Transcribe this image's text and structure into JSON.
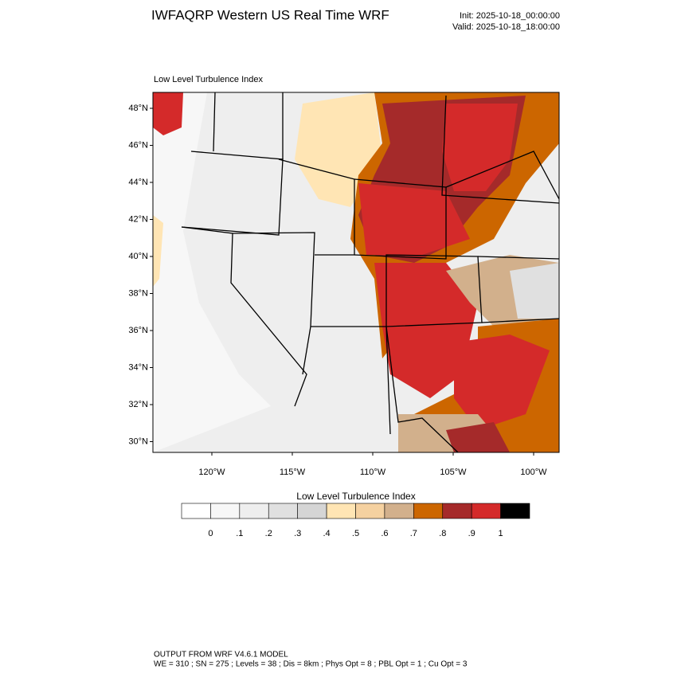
{
  "header": {
    "title": "IWFAQRP Western US Real Time WRF",
    "init": "Init: 2025-10-18_00:00:00",
    "valid": "Valid: 2025-10-18_18:00:00"
  },
  "map": {
    "subtitle": "Low Level Turbulence Index",
    "lat_labels": [
      "48°N",
      "46°N",
      "44°N",
      "42°N",
      "40°N",
      "38°N",
      "36°N",
      "34°N",
      "32°N",
      "30°N"
    ],
    "lon_labels": [
      "120°W",
      "115°W",
      "110°W",
      "105°W",
      "100°W"
    ]
  },
  "colorbar": {
    "title": "Low Level Turbulence Index",
    "colors": [
      "#ffffff",
      "#f7f7f7",
      "#eeeeee",
      "#e0e0e0",
      "#d5d5d5",
      "#ffe5b4",
      "#f5d1a0",
      "#d2b08c",
      "#cc6600",
      "#a52a2a",
      "#d42a2a",
      "#000000"
    ],
    "labels": [
      "0",
      ".1",
      ".2",
      ".3",
      ".4",
      ".5",
      ".6",
      ".7",
      ".8",
      ".9",
      "1"
    ]
  },
  "footer": {
    "line1": "OUTPUT FROM WRF V4.6.1 MODEL",
    "line2": "WE = 310 ; SN = 275 ; Levels = 38 ; Dis = 8km ; Phys Opt = 8 ; PBL Opt = 1 ; Cu Opt = 3"
  }
}
